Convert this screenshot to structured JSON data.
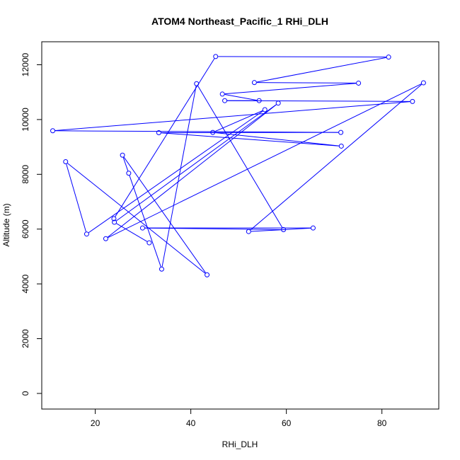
{
  "chart_data": {
    "type": "line",
    "title": "ATOM4 Northeast_Pacific_1 RHi_DLH",
    "xlabel": "RHi_DLH",
    "ylabel": "Altitude (m)",
    "xlim": [
      8.8,
      91.9
    ],
    "ylim": [
      -570,
      12840
    ],
    "x_ticks": [
      20,
      40,
      60,
      80
    ],
    "x_tick_labels": [
      "20",
      "40",
      "60",
      "80"
    ],
    "y_ticks": [
      0,
      2000,
      4000,
      6000,
      8000,
      10000,
      12000
    ],
    "y_tick_labels": [
      "0",
      "2000",
      "4000",
      "6000",
      "8000",
      "10000",
      "12000"
    ],
    "grid": false,
    "series": [
      {
        "color": "#0000ff",
        "marker": "open-circle",
        "x": [
          23.9,
          45.2,
          81.4,
          53.3,
          75.1,
          46.6,
          54.3,
          47.1,
          86.4,
          11.1,
          71.4,
          33.3,
          71.5,
          44.6,
          55.5,
          18.2,
          13.8,
          43.4,
          25.7,
          27.0,
          33.9,
          41.2,
          59.4,
          29.9,
          65.6,
          52.1,
          88.7,
          22.2,
          58.3,
          24.0,
          31.3
        ],
        "y": [
          6380,
          12300,
          12280,
          11350,
          11330,
          10930,
          10690,
          10690,
          10660,
          9590,
          9530,
          9520,
          9030,
          9530,
          10360,
          5820,
          8460,
          4330,
          8700,
          8040,
          4540,
          11310,
          5980,
          6040,
          6040,
          5910,
          11340,
          5650,
          10600,
          6250,
          5500
        ]
      }
    ]
  }
}
